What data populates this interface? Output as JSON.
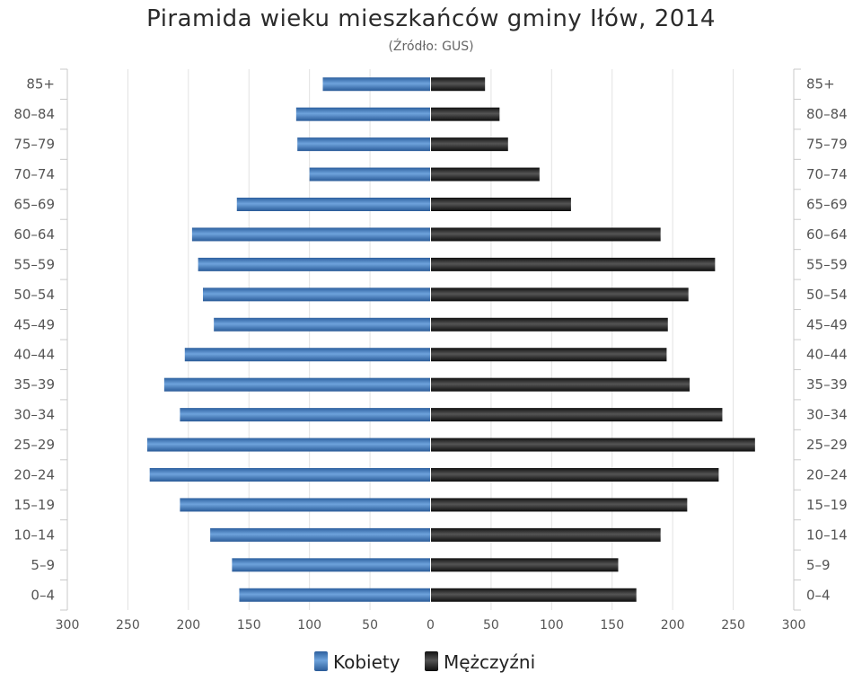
{
  "chart_data": {
    "type": "bar",
    "orientation": "horizontal-population-pyramid",
    "title": "Piramida wieku mieszkańców gminy Iłów, 2014",
    "subtitle": "(Źródło: GUS)",
    "categories": [
      "0–4",
      "5–9",
      "10–14",
      "15–19",
      "20–24",
      "25–29",
      "30–34",
      "35–39",
      "40–44",
      "45–49",
      "50–54",
      "55–59",
      "60–64",
      "65–69",
      "70–74",
      "75–79",
      "80–84",
      "85+"
    ],
    "series": [
      {
        "name": "Kobiety",
        "color": "#3b78c0",
        "values": [
          158,
          164,
          182,
          207,
          232,
          234,
          207,
          220,
          203,
          179,
          188,
          192,
          197,
          160,
          100,
          110,
          111,
          89
        ]
      },
      {
        "name": "Mężczyźni",
        "color": "#222222",
        "values": [
          170,
          155,
          190,
          212,
          238,
          268,
          241,
          214,
          195,
          196,
          213,
          235,
          190,
          116,
          90,
          64,
          57,
          45
        ]
      }
    ],
    "xlim": [
      -300,
      300
    ],
    "xticks": [
      -300,
      -250,
      -200,
      -150,
      -100,
      -50,
      0,
      50,
      100,
      150,
      200,
      250,
      300
    ],
    "xtick_labels": [
      "300",
      "250",
      "200",
      "150",
      "100",
      "50",
      "0",
      "50",
      "100",
      "150",
      "200",
      "250",
      "300"
    ],
    "grid": true,
    "legend_position": "bottom-center"
  }
}
